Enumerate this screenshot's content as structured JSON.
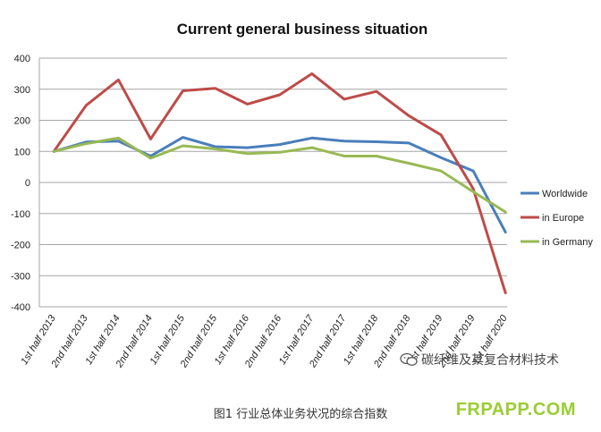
{
  "chart_data": {
    "type": "line",
    "title": "Current general business situation",
    "categories": [
      "1st half 2013",
      "2nd half 2013",
      "1st half 2014",
      "2nd half 2014",
      "1st half 2015",
      "2nd half 2015",
      "1st half 2016",
      "2nd half 2016",
      "1st half 2017",
      "2nd half 2017",
      "1st half 2018",
      "2nd half 2018",
      "1st half 2019",
      "2nd half 2019",
      "1st half 2020"
    ],
    "ylim": [
      -400,
      400
    ],
    "yticks": [
      400,
      300,
      200,
      100,
      0,
      -100,
      -200,
      -300,
      -400
    ],
    "grid": true,
    "legend_position": "right",
    "series": [
      {
        "name": "Worldwide",
        "color": "#4a7ebb",
        "values": [
          100,
          130,
          133,
          85,
          145,
          115,
          112,
          122,
          143,
          133,
          131,
          127,
          80,
          37,
          -160
        ]
      },
      {
        "name": "in Europe",
        "color": "#be4b48",
        "values": [
          100,
          248,
          330,
          140,
          295,
          303,
          252,
          282,
          350,
          268,
          293,
          215,
          153,
          -20,
          -355
        ]
      },
      {
        "name": "in Germany",
        "color": "#98b954",
        "values": [
          100,
          125,
          143,
          78,
          118,
          108,
          93,
          97,
          112,
          85,
          85,
          62,
          37,
          -30,
          -95
        ]
      }
    ]
  },
  "caption": "图1 行业总体业务状况的综合指数",
  "watermark": "碳纤维及其复合材料技术",
  "site": "FRPAPP.COM"
}
